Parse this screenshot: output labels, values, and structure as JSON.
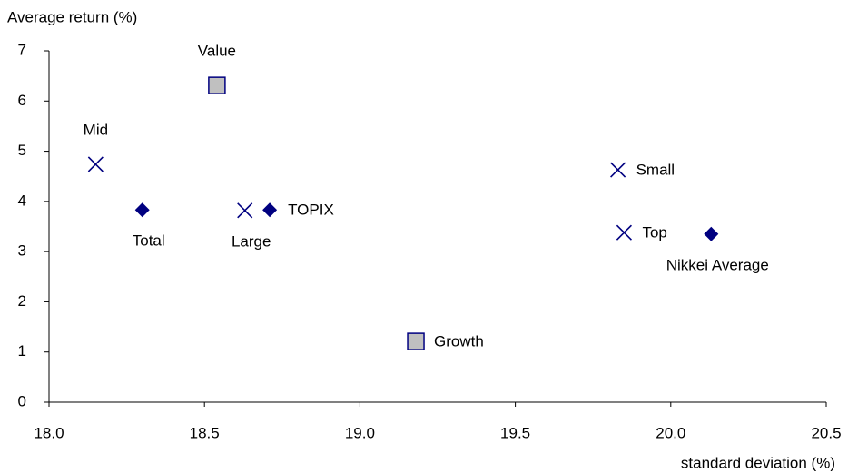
{
  "chart_data": {
    "type": "scatter",
    "y_label": "Average return (%)",
    "x_label": "standard deviation (%)",
    "xlim": [
      18.0,
      20.5
    ],
    "xticks": [
      {
        "value": 18.0,
        "label": "18.0"
      },
      18.5,
      {
        "value": 19.0,
        "label": "19.0"
      },
      19.5,
      {
        "value": 20.0,
        "label": "20.0"
      },
      20.5
    ],
    "ylim": [
      0,
      7
    ],
    "yticks": [
      0,
      1,
      2,
      3,
      4,
      5,
      6,
      7
    ],
    "grid": false,
    "series": [
      {
        "marker": "diamond",
        "color": "#000080",
        "x": [
          18.3,
          18.71,
          20.13
        ],
        "values": [
          3.83,
          3.83,
          3.35
        ],
        "labels": [
          "Total",
          "TOPIX",
          "Nikkei Average"
        ]
      },
      {
        "marker": "cross",
        "color": "#000080",
        "x": [
          18.15,
          18.63,
          19.83,
          19.85
        ],
        "values": [
          4.74,
          3.82,
          4.63,
          3.38
        ],
        "labels": [
          "Mid",
          "Large",
          "Small",
          "Top"
        ]
      },
      {
        "marker": "square",
        "color": "#000080",
        "fill": "#c0c0c0",
        "x": [
          18.54,
          19.18
        ],
        "values": [
          6.31,
          1.21
        ],
        "labels": [
          "Value",
          "Growth"
        ]
      }
    ]
  }
}
